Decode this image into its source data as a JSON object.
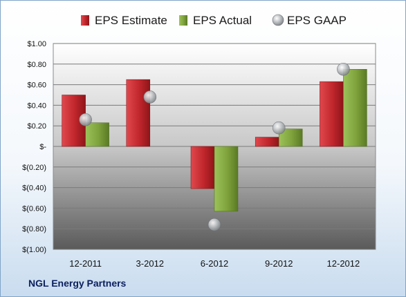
{
  "footer_title": "NGL Energy Partners",
  "chart_data": {
    "type": "bar",
    "title": "",
    "xlabel": "",
    "ylabel": "",
    "categories": [
      "12-2011",
      "3-2012",
      "6-2012",
      "9-2012",
      "12-2012"
    ],
    "ylim": [
      -1.0,
      1.0
    ],
    "yticks": [
      1.0,
      0.8,
      0.6,
      0.4,
      0.2,
      0.0,
      -0.2,
      -0.4,
      -0.6,
      -0.8,
      -1.0
    ],
    "ytick_labels": [
      "$1.00",
      "$0.80",
      "$0.60",
      "$0.40",
      "$0.20",
      "$-",
      "$(0.20)",
      "$(0.40)",
      "$(0.60)",
      "$(0.80)",
      "$(1.00)"
    ],
    "grid": true,
    "legend_position": "top",
    "series": [
      {
        "name": "EPS Estimate",
        "kind": "bar",
        "color": "#c0262c",
        "values": [
          0.5,
          0.65,
          -0.41,
          0.09,
          0.63
        ]
      },
      {
        "name": "EPS Actual",
        "kind": "bar",
        "color": "#7fa23c",
        "values": [
          0.23,
          0.0,
          -0.63,
          0.17,
          0.75
        ]
      },
      {
        "name": "EPS GAAP",
        "kind": "marker",
        "color": "#b8bcc0",
        "values": [
          0.26,
          0.48,
          -0.76,
          0.18,
          0.75
        ]
      }
    ]
  }
}
